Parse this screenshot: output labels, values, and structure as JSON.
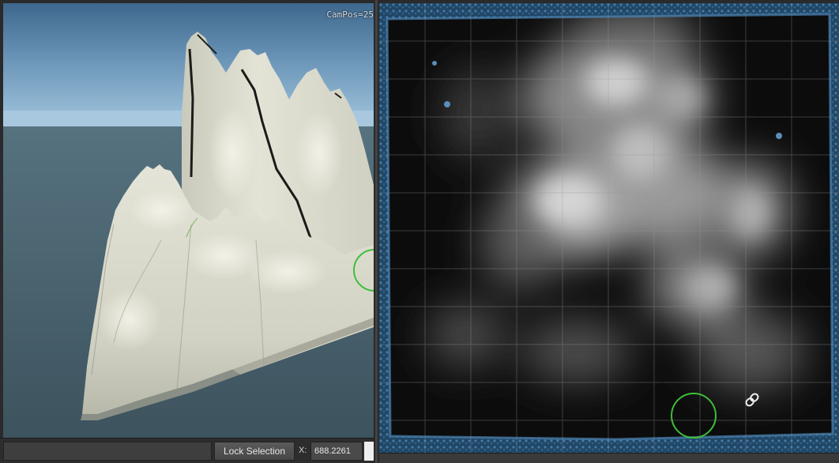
{
  "viewport_3d": {
    "campos_label": "CamPos=25"
  },
  "statusbar": {
    "lock_selection_label": "Lock Selection",
    "x_label": "X:",
    "x_value": "688.2261"
  },
  "icons": {
    "brush_cursor_3d": "circle-brush-icon",
    "brush_cursor_2d": "circle-brush-icon",
    "mouse_cursor": "link-cursor-icon"
  },
  "colors": {
    "brush": "#3fbf3a",
    "sky_top": "#3f6a8e",
    "terrain": "#d3d4c5",
    "heightmap_bg": "#0a0a0a",
    "water": "#2f5f88"
  }
}
